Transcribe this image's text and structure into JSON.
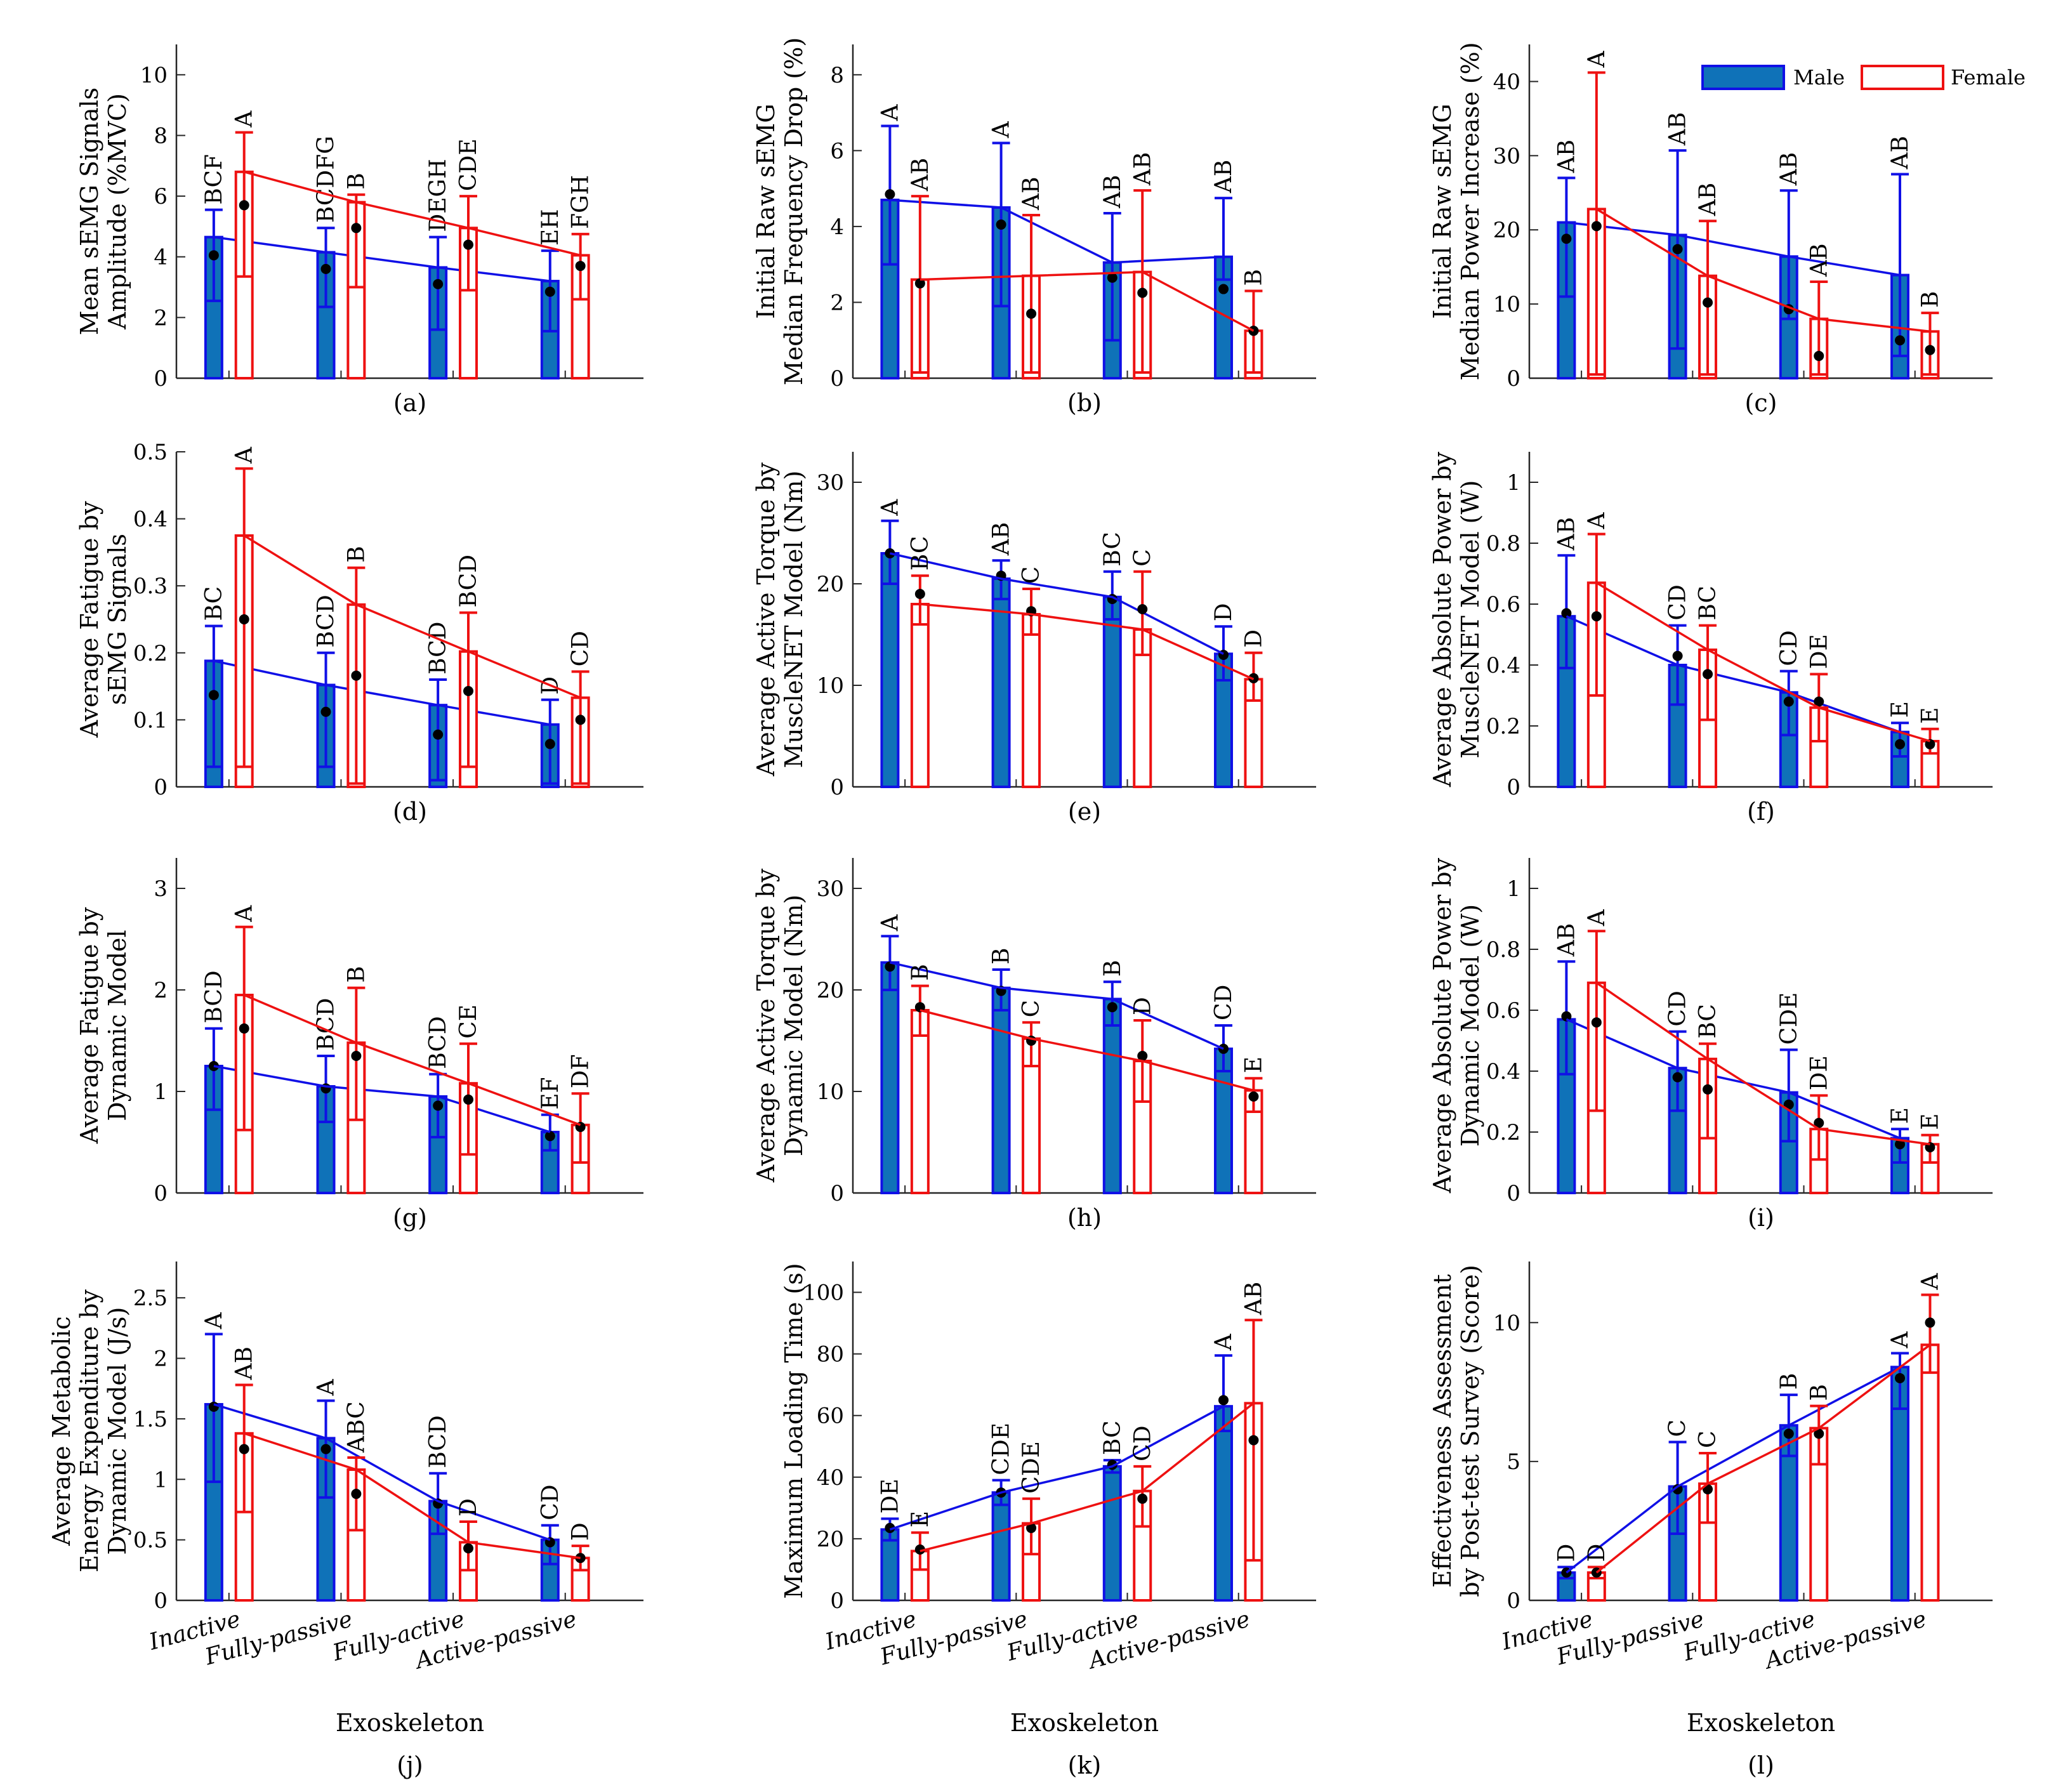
{
  "figure": {
    "x_categories": [
      "Inactive",
      "Fully-passive",
      "Fully-active",
      "Active-passive"
    ],
    "x_axis_label": "Exoskeleton",
    "legend": {
      "male": "Male",
      "female": "Female"
    },
    "colors": {
      "male_fill": "#0f72b8",
      "male_edge": "#1010e6",
      "female_edge": "#ee1111",
      "mean_dot": "#000000"
    }
  },
  "chart_data": [
    {
      "type": "bar",
      "panel": "(a)",
      "ylabel": [
        "Mean sEMG Signals",
        "Amplitude (%MVC)"
      ],
      "ylim": [
        0,
        11
      ],
      "ticks": [
        0,
        2,
        4,
        6,
        8,
        10
      ],
      "tick_labels": [
        "0",
        "2",
        "4",
        "6",
        "8",
        "10"
      ],
      "series": [
        {
          "name": "Male",
          "values": [
            4.65,
            4.15,
            3.65,
            3.2
          ],
          "err_hi": [
            5.55,
            4.95,
            4.65,
            4.2
          ],
          "err_lo": [
            2.55,
            2.35,
            1.6,
            1.55
          ],
          "dots": [
            4.05,
            3.6,
            3.1,
            2.85
          ],
          "letters": [
            "BCF",
            "BCDFG",
            "DEGH",
            "EH"
          ]
        },
        {
          "name": "Female",
          "values": [
            6.8,
            5.8,
            4.95,
            4.05
          ],
          "err_hi": [
            8.1,
            6.05,
            6.0,
            4.75
          ],
          "err_lo": [
            3.35,
            3.0,
            2.9,
            2.6
          ],
          "dots": [
            5.7,
            4.95,
            4.4,
            3.7
          ],
          "letters": [
            "A",
            "B",
            "CDE",
            "FGH"
          ]
        }
      ]
    },
    {
      "type": "bar",
      "panel": "(b)",
      "ylabel": [
        "Initial Raw sEMG",
        "Median Frequency Drop (%)"
      ],
      "ylim": [
        0,
        8.8
      ],
      "ticks": [
        0,
        2,
        4,
        6,
        8
      ],
      "tick_labels": [
        "0",
        "2",
        "4",
        "6",
        "8"
      ],
      "series": [
        {
          "name": "Male",
          "values": [
            4.7,
            4.5,
            3.05,
            3.2
          ],
          "err_hi": [
            6.65,
            6.2,
            4.35,
            4.75
          ],
          "err_lo": [
            3.0,
            1.9,
            1.0,
            2.6
          ],
          "dots": [
            4.85,
            4.05,
            2.65,
            2.35
          ],
          "letters": [
            "A",
            "A",
            "AB",
            "AB"
          ]
        },
        {
          "name": "Female",
          "values": [
            2.6,
            2.7,
            2.8,
            1.25
          ],
          "err_hi": [
            4.8,
            4.3,
            4.95,
            2.3
          ],
          "err_lo": [
            0.15,
            0.15,
            0.15,
            0.15
          ],
          "dots": [
            2.5,
            1.7,
            2.25,
            1.25
          ],
          "letters": [
            "AB",
            "AB",
            "AB",
            "B"
          ]
        }
      ]
    },
    {
      "type": "bar",
      "panel": "(c)",
      "ylabel": [
        "Initial Raw sEMG",
        "Median Power Increase (%)"
      ],
      "ylim": [
        0,
        45
      ],
      "ticks": [
        0,
        10,
        20,
        30,
        40
      ],
      "tick_labels": [
        "0",
        "10",
        "20",
        "30",
        "40"
      ],
      "series": [
        {
          "name": "Male",
          "values": [
            21.0,
            19.3,
            16.4,
            13.9
          ],
          "err_hi": [
            27.0,
            30.7,
            25.3,
            27.5
          ],
          "err_lo": [
            11.0,
            4.0,
            8.0,
            3.0
          ],
          "dots": [
            18.8,
            17.4,
            9.3,
            5.1
          ],
          "letters": [
            "AB",
            "AB",
            "AB",
            "AB"
          ]
        },
        {
          "name": "Female",
          "values": [
            22.8,
            13.8,
            8.0,
            6.3
          ],
          "err_hi": [
            41.2,
            21.2,
            13.0,
            8.8
          ],
          "err_lo": [
            0.5,
            0.5,
            0.5,
            0.5
          ],
          "dots": [
            20.5,
            10.2,
            3.0,
            3.8
          ],
          "letters": [
            "A",
            "AB",
            "AB",
            "B"
          ]
        }
      ]
    },
    {
      "type": "bar",
      "panel": "(d)",
      "ylabel": [
        "Average Fatigue by",
        "sEMG Signals"
      ],
      "ylim": [
        0,
        0.5
      ],
      "ticks": [
        0,
        0.1,
        0.2,
        0.3,
        0.4,
        0.5
      ],
      "tick_labels": [
        "0",
        "0.1",
        "0.2",
        "0.3",
        "0.4",
        "0.5"
      ],
      "series": [
        {
          "name": "Male",
          "values": [
            0.188,
            0.152,
            0.122,
            0.093
          ],
          "err_hi": [
            0.24,
            0.2,
            0.16,
            0.13
          ],
          "err_lo": [
            0.03,
            0.03,
            0.01,
            0.005
          ],
          "dots": [
            0.137,
            0.112,
            0.078,
            0.064
          ],
          "letters": [
            "BC",
            "BCD",
            "BCD",
            "D"
          ]
        },
        {
          "name": "Female",
          "values": [
            0.375,
            0.272,
            0.202,
            0.133
          ],
          "err_hi": [
            0.475,
            0.327,
            0.26,
            0.172
          ],
          "err_lo": [
            0.03,
            0.005,
            0.03,
            0.005
          ],
          "dots": [
            0.25,
            0.166,
            0.143,
            0.1
          ],
          "letters": [
            "A",
            "B",
            "BCD",
            "CD"
          ]
        }
      ]
    },
    {
      "type": "bar",
      "panel": "(e)",
      "ylabel": [
        "Average Active Torque by",
        "MuscleNET Model (Nm)"
      ],
      "ylim": [
        0,
        33
      ],
      "ticks": [
        0,
        10,
        20,
        30
      ],
      "tick_labels": [
        "0",
        "10",
        "20",
        "30"
      ],
      "series": [
        {
          "name": "Male",
          "values": [
            23.0,
            20.5,
            18.7,
            13.1
          ],
          "err_hi": [
            26.2,
            22.3,
            21.2,
            15.8
          ],
          "err_lo": [
            20.0,
            18.5,
            16.5,
            10.5
          ],
          "dots": [
            23.0,
            20.8,
            18.5,
            13.0
          ],
          "letters": [
            "A",
            "AB",
            "BC",
            "D"
          ]
        },
        {
          "name": "Female",
          "values": [
            18.0,
            17.0,
            15.5,
            10.6
          ],
          "err_hi": [
            20.8,
            19.5,
            21.2,
            13.2
          ],
          "err_lo": [
            16.0,
            15.0,
            13.0,
            8.5
          ],
          "dots": [
            19.0,
            17.3,
            17.5,
            10.7
          ],
          "letters": [
            "BC",
            "C",
            "C",
            "D"
          ]
        }
      ]
    },
    {
      "type": "bar",
      "panel": "(f)",
      "ylabel": [
        "Average Absolute Power by",
        "MuscleNET Model (W)"
      ],
      "ylim": [
        0,
        1.1
      ],
      "ticks": [
        0,
        0.2,
        0.4,
        0.6,
        0.8,
        1
      ],
      "tick_labels": [
        "0",
        "0.2",
        "0.4",
        "0.6",
        "0.8",
        "1"
      ],
      "series": [
        {
          "name": "Male",
          "values": [
            0.56,
            0.4,
            0.31,
            0.18
          ],
          "err_hi": [
            0.76,
            0.53,
            0.38,
            0.21
          ],
          "err_lo": [
            0.39,
            0.27,
            0.17,
            0.1
          ],
          "dots": [
            0.57,
            0.43,
            0.28,
            0.14
          ],
          "letters": [
            "AB",
            "CD",
            "CD",
            "E"
          ]
        },
        {
          "name": "Female",
          "values": [
            0.67,
            0.45,
            0.26,
            0.15
          ],
          "err_hi": [
            0.83,
            0.53,
            0.37,
            0.19
          ],
          "err_lo": [
            0.3,
            0.22,
            0.15,
            0.11
          ],
          "dots": [
            0.56,
            0.37,
            0.28,
            0.14
          ],
          "letters": [
            "A",
            "BC",
            "DE",
            "E"
          ]
        }
      ]
    },
    {
      "type": "bar",
      "panel": "(g)",
      "ylabel": [
        "Average Fatigue by",
        "Dynamic Model"
      ],
      "ylim": [
        0,
        3.3
      ],
      "ticks": [
        0,
        1,
        2,
        3
      ],
      "tick_labels": [
        "0",
        "1",
        "2",
        "3"
      ],
      "series": [
        {
          "name": "Male",
          "values": [
            1.25,
            1.05,
            0.95,
            0.6
          ],
          "err_hi": [
            1.62,
            1.35,
            1.17,
            0.77
          ],
          "err_lo": [
            0.82,
            0.7,
            0.55,
            0.42
          ],
          "dots": [
            1.25,
            1.03,
            0.86,
            0.56
          ],
          "letters": [
            "BCD",
            "BCD",
            "BCD",
            "EF"
          ]
        },
        {
          "name": "Female",
          "values": [
            1.95,
            1.48,
            1.08,
            0.67
          ],
          "err_hi": [
            2.62,
            2.02,
            1.47,
            0.98
          ],
          "err_lo": [
            0.62,
            0.72,
            0.38,
            0.3
          ],
          "dots": [
            1.62,
            1.35,
            0.92,
            0.65
          ],
          "letters": [
            "A",
            "B",
            "CE",
            "DF"
          ]
        }
      ]
    },
    {
      "type": "bar",
      "panel": "(h)",
      "ylabel": [
        "Average Active Torque by",
        "Dynamic Model (Nm)"
      ],
      "ylim": [
        0,
        33
      ],
      "ticks": [
        0,
        10,
        20,
        30
      ],
      "tick_labels": [
        "0",
        "10",
        "20",
        "30"
      ],
      "series": [
        {
          "name": "Male",
          "values": [
            22.7,
            20.2,
            19.1,
            14.2
          ],
          "err_hi": [
            25.3,
            22.0,
            20.8,
            16.5
          ],
          "err_lo": [
            20.0,
            18.0,
            16.5,
            12.0
          ],
          "dots": [
            22.3,
            19.9,
            18.3,
            14.2
          ],
          "letters": [
            "A",
            "B",
            "B",
            "CD"
          ]
        },
        {
          "name": "Female",
          "values": [
            18.0,
            15.2,
            13.0,
            10.1
          ],
          "err_hi": [
            20.4,
            16.8,
            17.0,
            11.3
          ],
          "err_lo": [
            15.5,
            12.5,
            9.0,
            8.0
          ],
          "dots": [
            18.3,
            15.0,
            13.5,
            9.5
          ],
          "letters": [
            "B",
            "C",
            "D",
            "E"
          ]
        }
      ]
    },
    {
      "type": "bar",
      "panel": "(i)",
      "ylabel": [
        "Average Absolute Power by",
        "Dynamic Model (W)"
      ],
      "ylim": [
        0,
        1.1
      ],
      "ticks": [
        0,
        0.2,
        0.4,
        0.6,
        0.8,
        1
      ],
      "tick_labels": [
        "0",
        "0.2",
        "0.4",
        "0.6",
        "0.8",
        "1"
      ],
      "series": [
        {
          "name": "Male",
          "values": [
            0.57,
            0.41,
            0.33,
            0.18
          ],
          "err_hi": [
            0.76,
            0.53,
            0.47,
            0.21
          ],
          "err_lo": [
            0.39,
            0.27,
            0.17,
            0.1
          ],
          "dots": [
            0.58,
            0.38,
            0.29,
            0.16
          ],
          "letters": [
            "AB",
            "CD",
            "CDE",
            "E"
          ]
        },
        {
          "name": "Female",
          "values": [
            0.69,
            0.44,
            0.21,
            0.16
          ],
          "err_hi": [
            0.86,
            0.49,
            0.32,
            0.19
          ],
          "err_lo": [
            0.27,
            0.18,
            0.11,
            0.1
          ],
          "dots": [
            0.56,
            0.34,
            0.23,
            0.15
          ],
          "letters": [
            "A",
            "BC",
            "DE",
            "E"
          ]
        }
      ]
    },
    {
      "type": "bar",
      "panel": "(j)",
      "ylabel": [
        "Average Metabolic",
        "Energy Expenditure by",
        "Dynamic Model (J/s)"
      ],
      "ylim": [
        0,
        2.8
      ],
      "ticks": [
        0,
        0.5,
        1,
        1.5,
        2,
        2.5
      ],
      "tick_labels": [
        "0",
        "0.5",
        "1",
        "1.5",
        "2",
        "2.5"
      ],
      "series": [
        {
          "name": "Male",
          "values": [
            1.62,
            1.34,
            0.82,
            0.5
          ],
          "err_hi": [
            2.2,
            1.65,
            1.05,
            0.62
          ],
          "err_lo": [
            0.98,
            0.85,
            0.55,
            0.3
          ],
          "dots": [
            1.6,
            1.25,
            0.8,
            0.48
          ],
          "letters": [
            "A",
            "A",
            "BCD",
            "CD"
          ]
        },
        {
          "name": "Female",
          "values": [
            1.38,
            1.08,
            0.48,
            0.35
          ],
          "err_hi": [
            1.78,
            1.18,
            0.65,
            0.45
          ],
          "err_lo": [
            0.73,
            0.58,
            0.25,
            0.25
          ],
          "dots": [
            1.25,
            0.88,
            0.43,
            0.35
          ],
          "letters": [
            "AB",
            "ABC",
            "D",
            "D"
          ]
        }
      ]
    },
    {
      "type": "bar",
      "panel": "(k)",
      "ylabel": [
        "Maximum Loading Time (s)"
      ],
      "ylim": [
        0,
        110
      ],
      "ticks": [
        0,
        20,
        40,
        60,
        80,
        100
      ],
      "tick_labels": [
        "0",
        "20",
        "40",
        "60",
        "80",
        "100"
      ],
      "series": [
        {
          "name": "Male",
          "values": [
            23.0,
            35.0,
            43.5,
            63.0
          ],
          "err_hi": [
            26.5,
            39.0,
            45.5,
            79.5
          ],
          "err_lo": [
            19.5,
            31.0,
            41.5,
            55.0
          ],
          "dots": [
            23.5,
            35.0,
            44.0,
            65.0
          ],
          "letters": [
            "DE",
            "CDE",
            "BC",
            "A"
          ]
        },
        {
          "name": "Female",
          "values": [
            16.0,
            25.0,
            35.5,
            64.0
          ],
          "err_hi": [
            22.0,
            33.0,
            43.5,
            91.0
          ],
          "err_lo": [
            10.0,
            15.0,
            24.0,
            13.0
          ],
          "dots": [
            16.5,
            23.5,
            33.0,
            52.0
          ],
          "letters": [
            "E",
            "CDE",
            "CD",
            "AB"
          ]
        }
      ]
    },
    {
      "type": "bar",
      "panel": "(l)",
      "ylabel": [
        "Effectiveness Assessment",
        "by Post-test Survey (Score)"
      ],
      "ylim": [
        0,
        12.2
      ],
      "ticks": [
        0,
        5,
        10
      ],
      "tick_labels": [
        "0",
        "5",
        "10"
      ],
      "series": [
        {
          "name": "Male",
          "values": [
            1.0,
            4.1,
            6.3,
            8.4
          ],
          "err_hi": [
            1.2,
            5.7,
            7.4,
            8.9
          ],
          "err_lo": [
            0.8,
            2.4,
            5.2,
            6.9
          ],
          "dots": [
            1.0,
            4.0,
            6.0,
            8.0
          ],
          "letters": [
            "D",
            "C",
            "B",
            "A"
          ]
        },
        {
          "name": "Female",
          "values": [
            1.0,
            4.2,
            6.2,
            9.2
          ],
          "err_hi": [
            1.2,
            5.3,
            7.0,
            11.0
          ],
          "err_lo": [
            0.8,
            2.8,
            4.9,
            8.2
          ],
          "dots": [
            1.0,
            4.0,
            6.0,
            10.0
          ],
          "letters": [
            "D",
            "C",
            "B",
            "A"
          ]
        }
      ]
    }
  ]
}
